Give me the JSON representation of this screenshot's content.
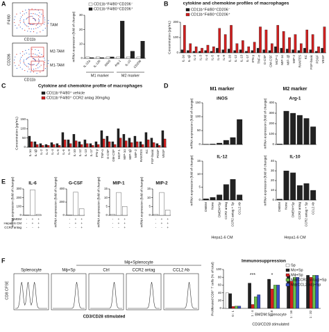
{
  "panel_letters": [
    "A",
    "B",
    "C",
    "D",
    "E",
    "F"
  ],
  "panel_a_flow": {
    "y_labels": [
      "F4/80",
      "CD206"
    ],
    "x_labels": [
      "CD11b",
      "CD11b"
    ],
    "gates": [
      "TAM",
      "M2-TAM",
      "M1-TAM"
    ]
  },
  "panel_d_headers": [
    "M1 marker",
    "M2 marker"
  ],
  "panel_e_conditions": [
    {
      "name": "BMDM",
      "signs": [
        "-",
        "+",
        "+"
      ]
    },
    {
      "name": "Hepa1-6 CM",
      "signs": [
        "-",
        "+",
        "+"
      ]
    },
    {
      "name": "CCR2 antag",
      "signs": [
        "-",
        "-",
        "+"
      ]
    }
  ],
  "panel_f_flow": {
    "ylabel": "CD8 CFSE",
    "xlabel": "CD3/CD28 stimulated",
    "group": "Mϕ+Splenocyte",
    "samples": [
      "Splenocyte",
      "Mϕ+Sp",
      "Ctrl",
      "CCR2 antag",
      "CCL2 Ab"
    ]
  },
  "chart_data": [
    {
      "type": "bar",
      "ylabel": "mRNA expression (fold of change)",
      "categories": [
        "IL-12a",
        "IL-12b",
        "iNOS",
        "Arg-1",
        "IL-10",
        "CD206"
      ],
      "series": [
        {
          "name": "CD11b⁺F4/80⁺CD206⁻",
          "color": "#ffffff",
          "values": [
            1,
            1,
            1,
            1,
            1,
            1
          ]
        },
        {
          "name": "CD11b⁺F4/80⁺CD206⁺",
          "color": "#222222",
          "values": [
            0.5,
            0.5,
            1,
            26,
            5,
            12
          ]
        }
      ],
      "groups": [
        {
          "label": "M1 marker",
          "span": [
            0,
            2
          ]
        },
        {
          "label": "M2 marker",
          "span": [
            3,
            5
          ]
        }
      ],
      "ylim": [
        0,
        30
      ],
      "yticks": [
        0,
        10,
        20,
        30
      ],
      "legend": "top"
    },
    {
      "type": "bar",
      "title": "cytokine and chemokine profiles of macrophages",
      "ylabel": "Concentration (pg/mL)",
      "categories": [
        "IL-1α",
        "IL-1β",
        "IL-2",
        "IL-3",
        "IL-4",
        "IL-5",
        "IL-6",
        "IL-9",
        "IL-10",
        "IL-12",
        "IL-13",
        "IL-17",
        "IFN-γ",
        "TNF-α",
        "G-CSF",
        "GM-CSF",
        "MCP-1",
        "MIP-1α",
        "MIP-1β",
        "MIP-2",
        "RANTES",
        "KC",
        "FGF-basic",
        "PDGF",
        "VEGF"
      ],
      "series": [
        {
          "name": "CD11b⁺F4/80⁺CD206⁻",
          "color": "#222222",
          "values": [
            20,
            15,
            10,
            10,
            15,
            10,
            30,
            20,
            25,
            15,
            20,
            10,
            15,
            30,
            20,
            15,
            40,
            30,
            25,
            20,
            15,
            30,
            20,
            10,
            30
          ]
        },
        {
          "name": "CD11b⁺F4/80⁺CD206⁺",
          "color": "#d02020",
          "values": [
            180,
            60,
            40,
            30,
            50,
            40,
            160,
            120,
            180,
            60,
            80,
            40,
            70,
            170,
            150,
            60,
            180,
            140,
            100,
            120,
            60,
            150,
            120,
            40,
            170
          ]
        }
      ],
      "ylim": [
        0,
        200
      ],
      "yticks": [
        0,
        100,
        200
      ],
      "legend": "top-left"
    },
    {
      "type": "bar",
      "title": "Cytokine and chemokine profile of macrophages",
      "ylabel": "Concentration (pg/mL)",
      "categories": [
        "IL-1α",
        "IL-1β",
        "IL-2",
        "IL-3",
        "IL-4",
        "IL-5",
        "IL-6",
        "IL-9",
        "IL-10",
        "IL-12",
        "IL-13",
        "IL-17",
        "IFN-γ",
        "TNF-α",
        "G-CSF",
        "GM-CSF",
        "MCP-1",
        "MIP-1α",
        "MIP-1β",
        "MIP-2",
        "RANTES",
        "KC",
        "FGF-basic",
        "PDGF",
        "VEGF"
      ],
      "series": [
        {
          "name": "CD11b⁺F4/80⁺ vehicle",
          "color": "#222222",
          "values": [
            60,
            30,
            20,
            15,
            25,
            20,
            80,
            40,
            70,
            30,
            40,
            20,
            30,
            90,
            60,
            30,
            100,
            70,
            50,
            60,
            30,
            80,
            50,
            20,
            90
          ]
        },
        {
          "name": "CD11b⁺F4/80⁺ CCR2 antag 30mg/kg",
          "color": "#d02020",
          "values": [
            30,
            15,
            10,
            10,
            15,
            10,
            40,
            20,
            35,
            15,
            20,
            10,
            15,
            45,
            30,
            15,
            50,
            35,
            25,
            30,
            15,
            40,
            25,
            10,
            45
          ]
        }
      ],
      "ylim": [
        0,
        150
      ],
      "yticks": [
        0,
        50,
        100,
        150
      ],
      "legend": "top-left"
    },
    {
      "type": "bar",
      "title": "iNOS",
      "ylabel": "mRNA expression (fold of change)",
      "categories": [
        null,
        null,
        null,
        null,
        null,
        null
      ],
      "values": [
        1,
        2,
        5,
        15,
        25,
        90
      ],
      "color": "#222222",
      "ylim": [
        0,
        150
      ],
      "yticks": [
        0,
        50,
        100,
        150
      ]
    },
    {
      "type": "bar",
      "title": "Arg-1",
      "ylabel": "mRNA expression (fold of change)",
      "categories": [
        null,
        null,
        null,
        null,
        null,
        null
      ],
      "values": [
        5,
        320,
        300,
        280,
        250,
        170
      ],
      "color": "#222222",
      "ylim": [
        0,
        400
      ],
      "yticks": [
        0,
        100,
        200,
        300,
        400
      ]
    },
    {
      "type": "bar",
      "title": "IL-12",
      "ylabel": "mRNA expression (fold of change)",
      "xlabel": "Hepa1-6 CM",
      "categories": [
        "DMEM",
        "None",
        "DMEM+Sp",
        "CCR2 antag",
        "CCR2 antag + Sp",
        "CCL2 Ab"
      ],
      "values": [
        0.5,
        1,
        2,
        6,
        8,
        2
      ],
      "color": "#222222",
      "ylim": [
        0,
        15
      ],
      "yticks": [
        0,
        5,
        10,
        15
      ]
    },
    {
      "type": "bar",
      "title": "IL-10",
      "ylabel": "mRNA expression (fold of change)",
      "xlabel": "Hepa1-6 CM",
      "categories": [
        "DMEM",
        "None",
        "DMEM+Sp",
        "CCR2 antag",
        "CCR2 antag + Sp",
        "CCL2 Ab"
      ],
      "values": [
        1,
        30,
        28,
        15,
        17,
        10
      ],
      "color": "#222222",
      "ylim": [
        0,
        40
      ],
      "yticks": [
        0,
        10,
        20,
        30,
        40
      ]
    },
    {
      "type": "bar",
      "title": "IL-6",
      "ylabel": "mRNA expression (fold of change)",
      "categories": [
        null,
        null,
        null
      ],
      "values": [
        2,
        290,
        10
      ],
      "color": "#ffffff",
      "ylim": [
        0,
        300
      ],
      "yticks": [
        0,
        100,
        200,
        300
      ]
    },
    {
      "type": "bar",
      "title": "G-CSF",
      "ylabel": "mRNA expression (fold of change)",
      "categories": [
        null,
        null,
        null
      ],
      "values": [
        5,
        350,
        100
      ],
      "color": "#ffffff",
      "ylim": [
        0,
        400
      ],
      "yticks": [
        0,
        200,
        400
      ]
    },
    {
      "type": "bar",
      "title": "MIP-1",
      "ylabel": "mRNA expression (fold of change)",
      "categories": [
        null,
        null,
        null
      ],
      "values": [
        0.5,
        13,
        5
      ],
      "color": "#ffffff",
      "ylim": [
        0,
        15
      ],
      "yticks": [
        0,
        5,
        10,
        15
      ]
    },
    {
      "type": "bar",
      "title": "MIP-2",
      "ylabel": "mRNA expression (fold of change)",
      "categories": [
        null,
        null,
        null
      ],
      "values": [
        0.5,
        13,
        3
      ],
      "color": "#ffffff",
      "ylim": [
        0,
        15
      ],
      "yticks": [
        0,
        5,
        10,
        15
      ]
    },
    {
      "type": "bar",
      "title": "Immunosuppression",
      "ylabel": "Proliferated CD8⁺ T cells (% of total)",
      "xlabel": "CD3/CD28 stimulated",
      "group_label": "BMDM:Splenocyte",
      "categories": [
        "0 : 1",
        "1 : 4",
        "1 : 8",
        "1 : 16",
        "1 : 32"
      ],
      "series": [
        {
          "name": "Sp",
          "color": "#ffffff",
          "values": [
            40,
            null,
            null,
            null,
            null
          ]
        },
        {
          "name": "Mo+Sp",
          "color": "#222222",
          "values": [
            38,
            65,
            75,
            85,
            85
          ]
        },
        {
          "name": "Mϕ+Sp",
          "color": "#d02020",
          "values": [
            5,
            10,
            50,
            70,
            80
          ]
        },
        {
          "name": "Mϕ(CCR2 antag)+Sp",
          "color": "#6cc04a",
          "values": [
            6,
            30,
            60,
            80,
            85
          ]
        },
        {
          "name": "Mϕ(CCL2 Ab)+Sp",
          "color": "#3a50c8",
          "values": [
            6,
            35,
            60,
            80,
            85
          ]
        }
      ],
      "annotations": [
        {
          "text": "***",
          "category": 1
        },
        {
          "text": "*",
          "category": 2
        }
      ],
      "ylim": [
        0,
        100
      ],
      "yticks": [
        0,
        20,
        40,
        60,
        80,
        100
      ],
      "legend": "top-right"
    }
  ]
}
